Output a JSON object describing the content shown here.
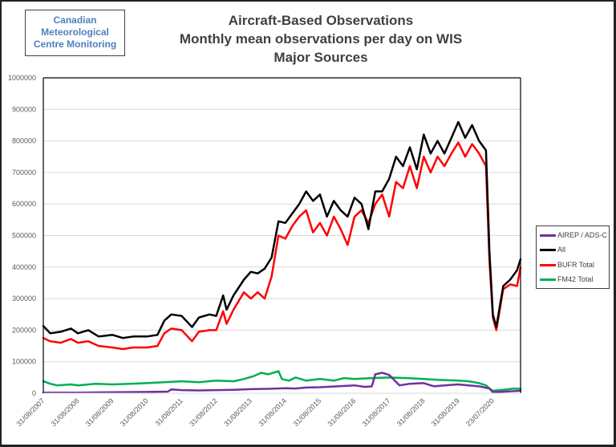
{
  "logo": {
    "lines": [
      "Canadian",
      "Meteorological",
      "Centre Monitoring"
    ]
  },
  "colors": {
    "airep": "#7030a0",
    "all": "#000000",
    "bufr": "#ff0000",
    "fm42": "#00b050",
    "title": "#404040",
    "logo_text": "#4f81bd",
    "gridline": "#d9d9d9"
  },
  "chart_data": {
    "type": "line",
    "title": [
      "Aircraft-Based Observations",
      "Monthly mean observations per day on WIS",
      "Major Sources"
    ],
    "xlabel": "",
    "ylabel": "",
    "ylim": [
      0,
      1000000
    ],
    "yticks": [
      0,
      100000,
      200000,
      300000,
      400000,
      500000,
      600000,
      700000,
      800000,
      900000,
      1000000
    ],
    "ytick_labels": [
      "0",
      "100000",
      "200000",
      "300000",
      "400000",
      "500000",
      "600000",
      "700000",
      "800000",
      "900000",
      "1000000"
    ],
    "xlim": [
      0,
      13.8
    ],
    "xticks": [
      0,
      1,
      2,
      3,
      4,
      5,
      6,
      7,
      8,
      9,
      10,
      11,
      12,
      13
    ],
    "xtick_labels": [
      "31/08/2007",
      "31/08/2008",
      "31/08/2009",
      "31/08/2010",
      "31/08/2011",
      "31/08/2012",
      "31/08/2013",
      "31/08/2014",
      "31/08/2015",
      "31/08/2016",
      "31/08/2017",
      "31/08/2018",
      "31/08/2019",
      "23/07/2020"
    ],
    "grid": true,
    "legend_position": "right",
    "x_units": "years since 31/08/2007",
    "series": [
      {
        "name": "AIREP / ADS-C",
        "color_key": "airep",
        "x": [
          0,
          1,
          2,
          3,
          3.6,
          3.7,
          4,
          4.5,
          5,
          5.5,
          6,
          6.5,
          7,
          7.3,
          7.6,
          8,
          8.5,
          9,
          9.3,
          9.5,
          9.6,
          9.8,
          10,
          10.3,
          10.6,
          11,
          11.3,
          11.6,
          12,
          12.3,
          12.6,
          12.9,
          13,
          13.2,
          13.5,
          13.8
        ],
        "y": [
          2000,
          2000,
          3000,
          4000,
          5000,
          12000,
          10000,
          9000,
          10000,
          11000,
          13000,
          14000,
          16000,
          15000,
          18000,
          19000,
          22000,
          25000,
          20000,
          22000,
          60000,
          65000,
          58000,
          25000,
          30000,
          32000,
          22000,
          25000,
          28000,
          25000,
          22000,
          15000,
          3000,
          4000,
          6000,
          8000
        ]
      },
      {
        "name": "All",
        "color_key": "all",
        "x": [
          0,
          0.2,
          0.5,
          0.8,
          1,
          1.3,
          1.6,
          2,
          2.3,
          2.6,
          3,
          3.3,
          3.5,
          3.7,
          4,
          4.3,
          4.5,
          4.8,
          5,
          5.2,
          5.3,
          5.5,
          5.8,
          6,
          6.2,
          6.4,
          6.6,
          6.8,
          7,
          7.2,
          7.4,
          7.6,
          7.8,
          8,
          8.2,
          8.4,
          8.6,
          8.8,
          9,
          9.2,
          9.4,
          9.6,
          9.8,
          10,
          10.2,
          10.4,
          10.6,
          10.8,
          11,
          11.2,
          11.4,
          11.6,
          11.8,
          12,
          12.2,
          12.4,
          12.6,
          12.8,
          12.9,
          13.0,
          13.1,
          13.3,
          13.5,
          13.7,
          13.8
        ],
        "y": [
          213000,
          190000,
          195000,
          205000,
          190000,
          200000,
          180000,
          185000,
          175000,
          180000,
          180000,
          185000,
          230000,
          250000,
          245000,
          210000,
          240000,
          250000,
          245000,
          310000,
          265000,
          310000,
          360000,
          385000,
          380000,
          395000,
          430000,
          545000,
          540000,
          570000,
          600000,
          640000,
          610000,
          630000,
          560000,
          610000,
          580000,
          560000,
          620000,
          600000,
          520000,
          640000,
          640000,
          680000,
          750000,
          720000,
          780000,
          710000,
          820000,
          760000,
          800000,
          760000,
          810000,
          860000,
          810000,
          850000,
          800000,
          770000,
          450000,
          250000,
          210000,
          340000,
          360000,
          390000,
          425000
        ]
      },
      {
        "name": "BUFR Total",
        "color_key": "bufr",
        "x": [
          0,
          0.2,
          0.5,
          0.8,
          1,
          1.3,
          1.6,
          2,
          2.3,
          2.6,
          3,
          3.3,
          3.5,
          3.7,
          4,
          4.3,
          4.5,
          4.8,
          5,
          5.2,
          5.3,
          5.5,
          5.8,
          6,
          6.2,
          6.4,
          6.6,
          6.8,
          7,
          7.2,
          7.4,
          7.6,
          7.8,
          8,
          8.2,
          8.4,
          8.6,
          8.8,
          9,
          9.2,
          9.4,
          9.6,
          9.8,
          10,
          10.2,
          10.4,
          10.6,
          10.8,
          11,
          11.2,
          11.4,
          11.6,
          11.8,
          12,
          12.2,
          12.4,
          12.6,
          12.8,
          12.9,
          13.0,
          13.1,
          13.3,
          13.5,
          13.7,
          13.8
        ],
        "y": [
          175000,
          165000,
          160000,
          172000,
          160000,
          165000,
          150000,
          145000,
          140000,
          145000,
          145000,
          150000,
          190000,
          205000,
          200000,
          165000,
          195000,
          200000,
          200000,
          260000,
          220000,
          265000,
          320000,
          300000,
          320000,
          300000,
          370000,
          500000,
          490000,
          530000,
          560000,
          580000,
          510000,
          540000,
          500000,
          560000,
          520000,
          470000,
          560000,
          580000,
          540000,
          600000,
          630000,
          560000,
          670000,
          650000,
          720000,
          650000,
          750000,
          700000,
          750000,
          720000,
          760000,
          795000,
          750000,
          790000,
          760000,
          720000,
          420000,
          240000,
          200000,
          330000,
          345000,
          340000,
          400000
        ]
      },
      {
        "name": "FM42 Total",
        "color_key": "fm42",
        "x": [
          0,
          0.2,
          0.4,
          0.8,
          1,
          1.5,
          2,
          2.5,
          3,
          3.5,
          4,
          4.5,
          5,
          5.5,
          5.8,
          6.1,
          6.3,
          6.5,
          6.8,
          6.9,
          7.1,
          7.3,
          7.6,
          8,
          8.4,
          8.7,
          9,
          9.5,
          10,
          10.5,
          11,
          11.5,
          12,
          12.3,
          12.6,
          12.8,
          12.9,
          13.0,
          13.2,
          13.4,
          13.6,
          13.8
        ],
        "y": [
          38000,
          30000,
          25000,
          28000,
          25000,
          30000,
          28000,
          30000,
          32000,
          35000,
          38000,
          35000,
          40000,
          38000,
          45000,
          55000,
          65000,
          60000,
          70000,
          45000,
          40000,
          50000,
          40000,
          45000,
          40000,
          48000,
          45000,
          48000,
          50000,
          48000,
          45000,
          42000,
          40000,
          38000,
          32000,
          25000,
          15000,
          8000,
          10000,
          12000,
          15000,
          14000
        ]
      }
    ]
  }
}
